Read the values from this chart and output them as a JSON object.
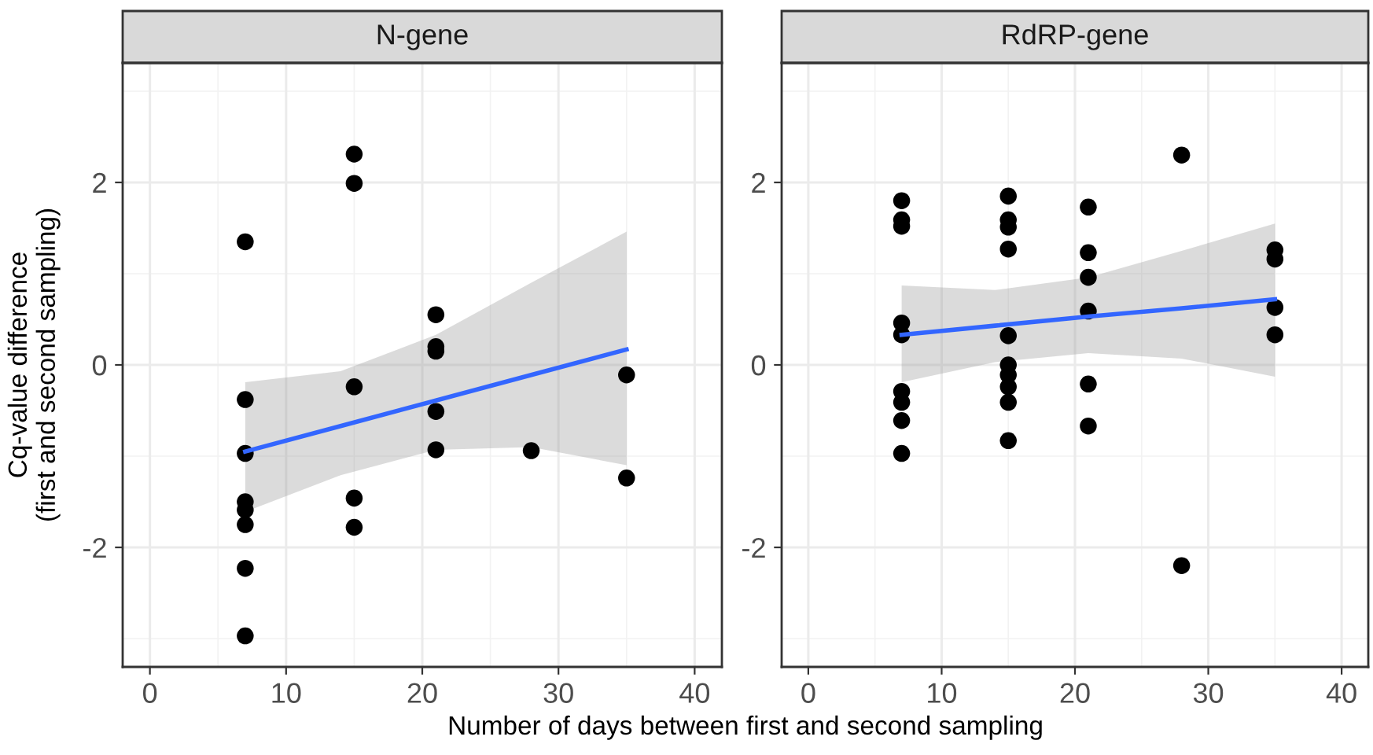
{
  "chart_data": [
    {
      "type": "scatter",
      "title": "N-gene",
      "xlabel": "Number of days between first and second sampling",
      "ylabel": "Cq-value difference\n(first and second sampling)",
      "xlim": [
        -2,
        42
      ],
      "xticks": [
        0,
        10,
        20,
        30,
        40
      ],
      "ylim": [
        -3.31,
        3.31
      ],
      "yticks": [
        -2,
        0,
        2
      ],
      "grid": true,
      "series": [
        {
          "marker": "circle",
          "color": "#000000",
          "x": [
            7,
            7,
            7,
            7,
            7,
            7,
            7,
            7,
            15,
            15,
            15,
            15,
            15,
            21,
            21,
            21,
            21,
            21,
            28,
            35,
            35
          ],
          "values": [
            1.35,
            -0.38,
            -0.97,
            -1.5,
            -1.59,
            -1.75,
            -2.23,
            -2.97,
            2.31,
            1.99,
            -0.24,
            -1.46,
            -1.78,
            0.55,
            0.2,
            0.15,
            -0.51,
            -0.93,
            -0.94,
            -0.11,
            -1.24
          ]
        },
        {
          "type": "line",
          "color": "#3366ff",
          "x": [
            7,
            14,
            21,
            28,
            35
          ],
          "values": [
            -0.95,
            -0.67,
            -0.39,
            -0.11,
            0.17
          ],
          "lower": [
            -1.61,
            -1.21,
            -0.93,
            -0.9,
            -1.1
          ],
          "upper": [
            -0.19,
            -0.07,
            0.33,
            0.9,
            1.46
          ]
        }
      ]
    },
    {
      "type": "scatter",
      "title": "RdRP-gene",
      "xlim": [
        -2,
        42
      ],
      "xticks": [
        0,
        10,
        20,
        30,
        40
      ],
      "ylim": [
        -3.31,
        3.31
      ],
      "yticks": [
        -2,
        0,
        2
      ],
      "grid": true,
      "series": [
        {
          "marker": "circle",
          "color": "#000000",
          "x": [
            7,
            7,
            7,
            7,
            7,
            7,
            7,
            7,
            7,
            15,
            15,
            15,
            15,
            15,
            15,
            15,
            15,
            15,
            15,
            21,
            21,
            21,
            21,
            21,
            21,
            28,
            28,
            35,
            35,
            35,
            35
          ],
          "values": [
            1.8,
            1.59,
            1.52,
            0.46,
            0.33,
            -0.29,
            -0.41,
            -0.61,
            -0.97,
            1.85,
            1.59,
            1.51,
            1.27,
            0.32,
            0,
            -0.11,
            -0.24,
            -0.41,
            -0.83,
            1.73,
            1.23,
            0.96,
            0.59,
            -0.21,
            -0.67,
            2.3,
            -2.2,
            1.26,
            1.16,
            0.63,
            0.33
          ]
        },
        {
          "type": "line",
          "color": "#3366ff",
          "x": [
            7,
            14,
            21,
            28,
            35
          ],
          "values": [
            0.33,
            0.43,
            0.53,
            0.62,
            0.72
          ],
          "lower": [
            -0.19,
            0.03,
            0.13,
            0.07,
            -0.13
          ],
          "upper": [
            0.87,
            0.82,
            0.96,
            1.25,
            1.55
          ]
        }
      ]
    }
  ]
}
